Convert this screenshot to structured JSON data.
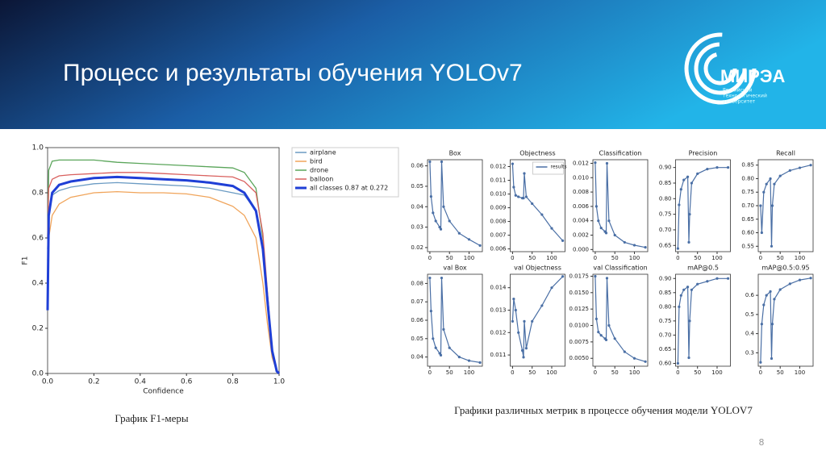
{
  "slide": {
    "title": "Процесс и результаты обучения YOLOv7",
    "logo": {
      "name": "МИРЭА",
      "subtitle": [
        "Российский",
        "технологический",
        "университет"
      ]
    },
    "caption_left": "График F1-меры",
    "caption_right": "Графики различных метрик в процессе обучения модели YOLOV7",
    "page_number": "8"
  },
  "chart_data": [
    {
      "type": "line",
      "xlabel": "Confidence",
      "ylabel": "F1",
      "x": [
        0,
        0.005,
        0.02,
        0.05,
        0.1,
        0.2,
        0.3,
        0.4,
        0.5,
        0.6,
        0.7,
        0.8,
        0.85,
        0.9,
        0.93,
        0.95,
        0.97,
        0.99,
        1.0
      ],
      "series": [
        {
          "name": "airplane",
          "color": "#6b9bc3",
          "values": [
            0.55,
            0.72,
            0.79,
            0.81,
            0.825,
            0.84,
            0.845,
            0.84,
            0.835,
            0.83,
            0.82,
            0.8,
            0.79,
            0.72,
            0.55,
            0.32,
            0.1,
            0.01,
            0
          ]
        },
        {
          "name": "bird",
          "color": "#f0a45a",
          "values": [
            0.5,
            0.6,
            0.7,
            0.75,
            0.78,
            0.8,
            0.805,
            0.8,
            0.8,
            0.795,
            0.78,
            0.74,
            0.7,
            0.6,
            0.4,
            0.22,
            0.07,
            0.01,
            0
          ]
        },
        {
          "name": "drone",
          "color": "#5aa55a",
          "values": [
            0.6,
            0.9,
            0.94,
            0.945,
            0.945,
            0.945,
            0.935,
            0.93,
            0.925,
            0.92,
            0.915,
            0.91,
            0.89,
            0.82,
            0.6,
            0.35,
            0.1,
            0.01,
            0
          ]
        },
        {
          "name": "balloon",
          "color": "#d9605e",
          "values": [
            0.6,
            0.82,
            0.86,
            0.875,
            0.88,
            0.885,
            0.89,
            0.89,
            0.885,
            0.88,
            0.875,
            0.87,
            0.85,
            0.8,
            0.62,
            0.36,
            0.1,
            0.01,
            0
          ]
        },
        {
          "name": "all classes 0.87 at 0.272",
          "color": "#1f3fd6",
          "linewidth": 3,
          "values": [
            0.28,
            0.7,
            0.8,
            0.835,
            0.85,
            0.865,
            0.87,
            0.865,
            0.86,
            0.855,
            0.845,
            0.83,
            0.8,
            0.72,
            0.55,
            0.32,
            0.1,
            0.01,
            0
          ]
        }
      ],
      "xlim": [
        0,
        1
      ],
      "ylim": [
        0,
        1
      ],
      "xticks": [
        {
          "value": 0,
          "label": "0.0"
        },
        0.2,
        0.4,
        0.6,
        0.8,
        {
          "value": 1,
          "label": "1.0"
        }
      ],
      "yticks": [
        {
          "value": 0,
          "label": "0.0"
        },
        0.2,
        0.4,
        0.6,
        0.8,
        {
          "value": 1,
          "label": "1.0"
        }
      ],
      "legend": "right"
    },
    {
      "type": "line",
      "title": "Box",
      "color": "#4a6fa5",
      "marker": true,
      "x": [
        0,
        3,
        8,
        15,
        25,
        28,
        30,
        35,
        50,
        75,
        100,
        128
      ],
      "values": [
        0.062,
        0.045,
        0.037,
        0.033,
        0.03,
        0.029,
        0.062,
        0.04,
        0.033,
        0.027,
        0.024,
        0.021
      ],
      "xlim": [
        -6,
        134
      ],
      "ylim": [
        0.018,
        0.063
      ],
      "xticks": [
        0,
        50,
        100
      ],
      "yticks": [
        0.02,
        0.03,
        0.04,
        0.05,
        0.06
      ]
    },
    {
      "type": "line",
      "title": "Objectness",
      "marker": true,
      "legend": "upper right",
      "x": [
        0,
        3,
        8,
        15,
        25,
        28,
        30,
        35,
        50,
        75,
        100,
        128
      ],
      "series": [
        {
          "name": "results",
          "color": "#4a6fa5",
          "values": [
            0.0122,
            0.0105,
            0.0099,
            0.0098,
            0.0097,
            0.0097,
            0.0115,
            0.0098,
            0.0093,
            0.0085,
            0.0075,
            0.0066
          ]
        }
      ],
      "xlim": [
        -6,
        134
      ],
      "ylim": [
        0.0058,
        0.0125
      ],
      "xticks": [
        0,
        50,
        100
      ],
      "yticks": [
        0.006,
        0.007,
        0.008,
        0.009,
        {
          "value": 0.01,
          "label": "0.010"
        },
        0.011,
        0.012
      ]
    },
    {
      "type": "line",
      "title": "Classification",
      "color": "#4a6fa5",
      "marker": true,
      "x": [
        0,
        3,
        8,
        15,
        25,
        28,
        30,
        35,
        50,
        75,
        100,
        128
      ],
      "values": [
        0.0121,
        0.006,
        0.004,
        0.003,
        0.0025,
        0.0023,
        0.012,
        0.004,
        0.002,
        0.001,
        0.0006,
        0.0003
      ],
      "xlim": [
        -6,
        134
      ],
      "ylim": [
        -0.0003,
        0.0125
      ],
      "xticks": [
        0,
        50,
        100
      ],
      "yticks": [
        {
          "value": 0,
          "label": "0.000"
        },
        0.002,
        0.004,
        0.006,
        0.008,
        {
          "value": 0.01,
          "label": "0.010"
        },
        0.012
      ]
    },
    {
      "type": "line",
      "title": "Precision",
      "color": "#4a6fa5",
      "marker": true,
      "x": [
        0,
        3,
        8,
        15,
        25,
        28,
        30,
        35,
        50,
        75,
        100,
        128
      ],
      "values": [
        0.64,
        0.78,
        0.83,
        0.86,
        0.87,
        0.66,
        0.75,
        0.85,
        0.88,
        0.895,
        0.9,
        0.9
      ],
      "xlim": [
        -6,
        134
      ],
      "ylim": [
        0.63,
        0.925
      ],
      "xticks": [
        0,
        50,
        100
      ],
      "yticks": [
        0.65,
        {
          "value": 0.7,
          "label": "0.70"
        },
        0.75,
        {
          "value": 0.8,
          "label": "0.80"
        },
        0.85,
        {
          "value": 0.9,
          "label": "0.90"
        }
      ]
    },
    {
      "type": "line",
      "title": "Recall",
      "color": "#4a6fa5",
      "marker": true,
      "x": [
        0,
        3,
        8,
        15,
        25,
        28,
        30,
        35,
        50,
        75,
        100,
        128
      ],
      "values": [
        0.7,
        0.6,
        0.75,
        0.78,
        0.8,
        0.55,
        0.7,
        0.78,
        0.81,
        0.83,
        0.84,
        0.85
      ],
      "xlim": [
        -6,
        134
      ],
      "ylim": [
        0.53,
        0.87
      ],
      "xticks": [
        0,
        50,
        100
      ],
      "yticks": [
        0.55,
        {
          "value": 0.6,
          "label": "0.60"
        },
        0.65,
        {
          "value": 0.7,
          "label": "0.70"
        },
        0.75,
        {
          "value": 0.8,
          "label": "0.80"
        },
        0.85
      ]
    },
    {
      "type": "line",
      "title": "val Box",
      "color": "#4a6fa5",
      "marker": true,
      "x": [
        0,
        3,
        8,
        15,
        25,
        28,
        30,
        35,
        50,
        75,
        100,
        128
      ],
      "values": [
        0.083,
        0.065,
        0.05,
        0.045,
        0.042,
        0.041,
        0.083,
        0.055,
        0.045,
        0.04,
        0.038,
        0.037
      ],
      "xlim": [
        -6,
        134
      ],
      "ylim": [
        0.035,
        0.085
      ],
      "xticks": [
        0,
        50,
        100
      ],
      "yticks": [
        0.04,
        0.05,
        0.06,
        0.07,
        0.08
      ]
    },
    {
      "type": "line",
      "title": "val Objectness",
      "color": "#4a6fa5",
      "marker": true,
      "x": [
        0,
        3,
        8,
        15,
        25,
        28,
        30,
        35,
        50,
        75,
        100,
        128
      ],
      "values": [
        0.0125,
        0.0135,
        0.013,
        0.012,
        0.0112,
        0.0109,
        0.0125,
        0.0113,
        0.0125,
        0.0132,
        0.014,
        0.0145
      ],
      "xlim": [
        -6,
        134
      ],
      "ylim": [
        0.0105,
        0.0146
      ],
      "xticks": [
        0,
        50,
        100
      ],
      "yticks": [
        0.011,
        0.012,
        0.013,
        0.014
      ]
    },
    {
      "type": "line",
      "title": "val Classification",
      "color": "#4a6fa5",
      "marker": true,
      "x": [
        0,
        3,
        8,
        15,
        25,
        28,
        30,
        35,
        50,
        75,
        100,
        128
      ],
      "values": [
        0.0175,
        0.011,
        0.009,
        0.0085,
        0.008,
        0.0078,
        0.0172,
        0.01,
        0.008,
        0.006,
        0.005,
        0.0045
      ],
      "xlim": [
        -6,
        134
      ],
      "ylim": [
        0.0038,
        0.0178
      ],
      "xticks": [
        0,
        50,
        100
      ],
      "yticks": [
        {
          "value": 0.005,
          "label": "0.0050"
        },
        0.0075,
        {
          "value": 0.01,
          "label": "0.0100"
        },
        0.0125,
        {
          "value": 0.015,
          "label": "0.0150"
        },
        0.0175
      ]
    },
    {
      "type": "line",
      "title": "mAP@0.5",
      "color": "#4a6fa5",
      "marker": true,
      "x": [
        0,
        3,
        8,
        15,
        25,
        28,
        30,
        35,
        50,
        75,
        100,
        128
      ],
      "values": [
        0.6,
        0.8,
        0.84,
        0.86,
        0.87,
        0.62,
        0.75,
        0.86,
        0.88,
        0.89,
        0.9,
        0.9
      ],
      "xlim": [
        -6,
        134
      ],
      "ylim": [
        0.59,
        0.915
      ],
      "xticks": [
        0,
        50,
        100
      ],
      "yticks": [
        {
          "value": 0.6,
          "label": "0.60"
        },
        0.65,
        {
          "value": 0.7,
          "label": "0.70"
        },
        0.75,
        {
          "value": 0.8,
          "label": "0.80"
        },
        0.85,
        {
          "value": 0.9,
          "label": "0.90"
        }
      ]
    },
    {
      "type": "line",
      "title": "mAP@0.5:0.95",
      "color": "#4a6fa5",
      "marker": true,
      "x": [
        0,
        3,
        8,
        15,
        25,
        28,
        30,
        35,
        50,
        75,
        100,
        128
      ],
      "values": [
        0.25,
        0.45,
        0.55,
        0.6,
        0.62,
        0.27,
        0.45,
        0.58,
        0.63,
        0.66,
        0.68,
        0.69
      ],
      "xlim": [
        -6,
        134
      ],
      "ylim": [
        0.23,
        0.71
      ],
      "xticks": [
        0,
        50,
        100
      ],
      "yticks": [
        0.3,
        0.4,
        0.5,
        0.6
      ]
    }
  ]
}
